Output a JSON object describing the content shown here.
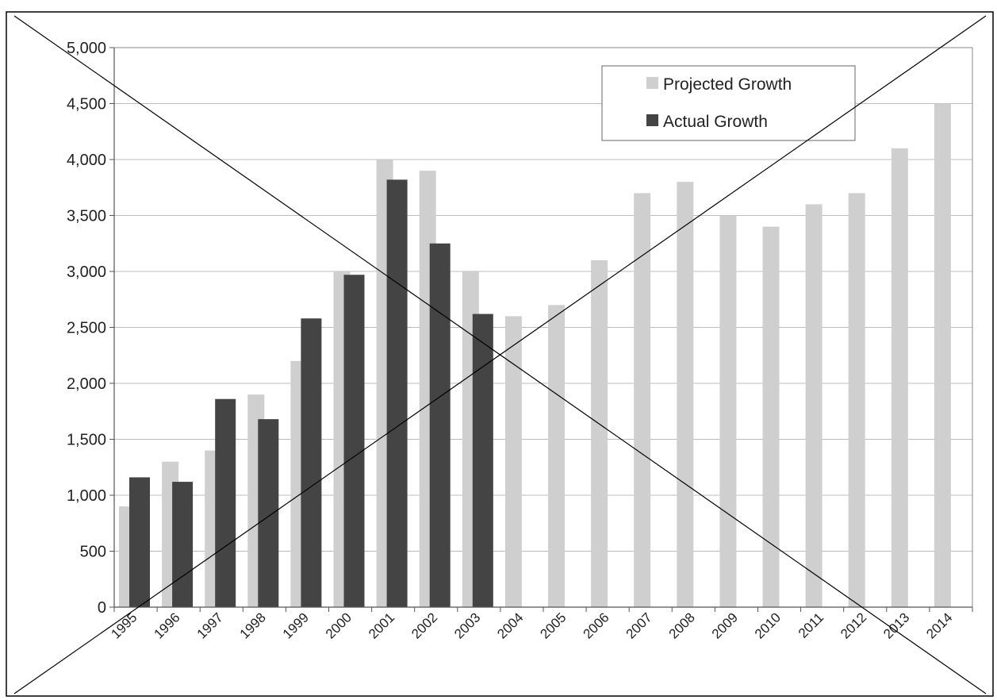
{
  "chart_data": {
    "type": "bar",
    "categories": [
      "1995",
      "1996",
      "1997",
      "1998",
      "1999",
      "2000",
      "2001",
      "2002",
      "2003",
      "2004",
      "2005",
      "2006",
      "2007",
      "2008",
      "2009",
      "2010",
      "2011",
      "2012",
      "2013",
      "2014"
    ],
    "series": [
      {
        "name": "Projected Growth",
        "color": "#cfcfcf",
        "values": [
          900,
          1300,
          1400,
          1900,
          2200,
          3000,
          4000,
          3900,
          3000,
          2600,
          2700,
          3100,
          3700,
          3800,
          3500,
          3400,
          3600,
          3700,
          4100,
          4500
        ]
      },
      {
        "name": "Actual Growth",
        "color": "#444444",
        "values": [
          1160,
          1120,
          1860,
          1680,
          2580,
          2970,
          3820,
          3250,
          2620,
          null,
          null,
          null,
          null,
          null,
          null,
          null,
          null,
          null,
          null,
          null
        ]
      }
    ],
    "y_ticks": [
      "0",
      "500",
      "1,000",
      "1,500",
      "2,000",
      "2,500",
      "3,000",
      "3,500",
      "4,000",
      "4,500",
      "5,000"
    ],
    "ylim": [
      0,
      5000
    ],
    "grid": true,
    "legend_position": "top-right",
    "title": "",
    "xlabel": "",
    "ylabel": ""
  }
}
